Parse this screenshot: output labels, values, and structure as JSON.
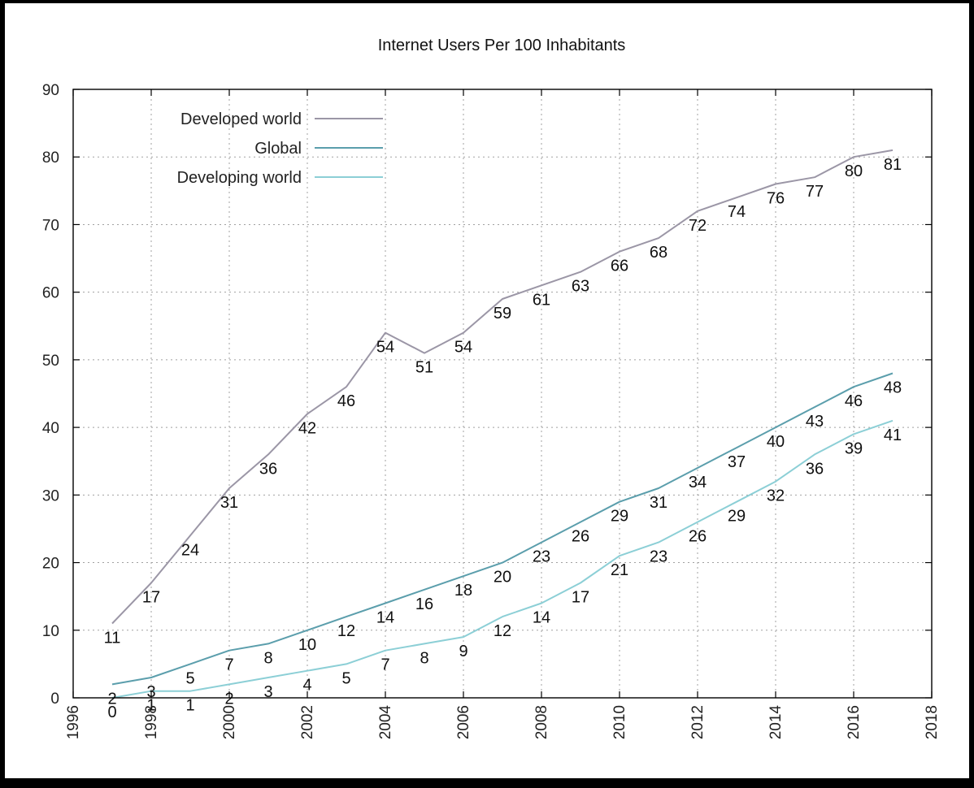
{
  "chart_data": {
    "type": "line",
    "title": "Internet Users Per 100 Inhabitants",
    "xlabel": "",
    "ylabel": "",
    "xlim": [
      1996,
      2018
    ],
    "ylim": [
      0,
      90
    ],
    "x_ticks": [
      "1996",
      "1998",
      "2000",
      "2002",
      "2004",
      "2006",
      "2008",
      "2010",
      "2012",
      "2014",
      "2016",
      "2018"
    ],
    "y_ticks": [
      "0",
      "10",
      "20",
      "30",
      "40",
      "50",
      "60",
      "70",
      "80",
      "90"
    ],
    "grid": true,
    "legend_position": "top-left",
    "x": [
      1997,
      1998,
      1999,
      2000,
      2001,
      2002,
      2003,
      2004,
      2005,
      2006,
      2007,
      2008,
      2009,
      2010,
      2011,
      2012,
      2013,
      2014,
      2015,
      2016,
      2017
    ],
    "series": [
      {
        "name": "Developed world",
        "color": "#9b96a6",
        "values": [
          11,
          17,
          24,
          31,
          36,
          42,
          46,
          54,
          51,
          54,
          59,
          61,
          63,
          66,
          68,
          72,
          74,
          76,
          77,
          80,
          81
        ],
        "labels": [
          "11",
          "17",
          "24",
          "31",
          "36",
          "42",
          "46",
          "54",
          "51",
          "54",
          "59",
          "61",
          "63",
          "66",
          "68",
          "72",
          "74",
          "76",
          "77",
          "80",
          "81"
        ]
      },
      {
        "name": "Global",
        "color": "#5b9eac",
        "values": [
          2,
          3,
          5,
          7,
          8,
          10,
          12,
          14,
          16,
          18,
          20,
          23,
          26,
          29,
          31,
          34,
          37,
          40,
          43,
          46,
          48
        ],
        "labels": [
          "2",
          "3",
          "5",
          "7",
          "8",
          "10",
          "12",
          "14",
          "16",
          "18",
          "20",
          "23",
          "26",
          "29",
          "31",
          "34",
          "37",
          "40",
          "43",
          "46",
          "48"
        ]
      },
      {
        "name": "Developing world",
        "color": "#8ccfd6",
        "values": [
          0,
          1,
          1,
          2,
          3,
          4,
          5,
          7,
          8,
          9,
          12,
          14,
          17,
          21,
          23,
          26,
          29,
          32,
          36,
          39,
          41
        ],
        "labels": [
          "0",
          "1",
          "1",
          "2",
          "3",
          "4",
          "5",
          "7",
          "8",
          "9",
          "12",
          "14",
          "17",
          "21",
          "23",
          "26",
          "29",
          "32",
          "36",
          "39",
          "41"
        ]
      }
    ]
  }
}
